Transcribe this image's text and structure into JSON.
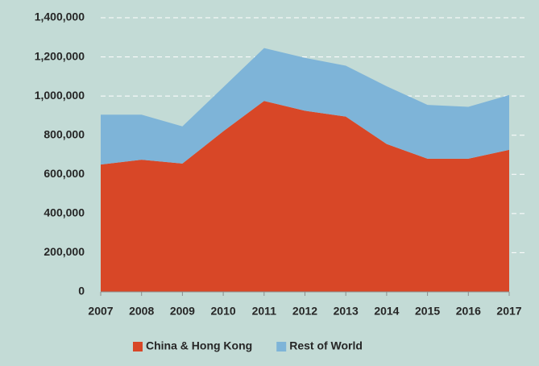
{
  "chart_data": {
    "type": "area",
    "stacked": true,
    "categories": [
      "2007",
      "2008",
      "2009",
      "2010",
      "2011",
      "2012",
      "2013",
      "2014",
      "2015",
      "2016",
      "2017"
    ],
    "series": [
      {
        "name": "China & Hong Kong",
        "color": "#d84727",
        "values": [
          650000,
          675000,
          655000,
          820000,
          975000,
          925000,
          895000,
          755000,
          680000,
          680000,
          725000
        ]
      },
      {
        "name": "Rest of World",
        "color": "#7eb4d8",
        "values": [
          255000,
          230000,
          190000,
          225000,
          270000,
          270000,
          260000,
          295000,
          275000,
          265000,
          280000
        ]
      }
    ],
    "ylim": [
      0,
      1400000
    ],
    "yticks": [
      0,
      {
        "value": 200000,
        "label": "200,000"
      },
      {
        "value": 400000,
        "label": "400,000"
      },
      {
        "value": 600000,
        "label": "600,000"
      },
      {
        "value": 800000,
        "label": "800,000"
      },
      {
        "value": 1000000,
        "label": "1,000,000"
      },
      {
        "value": 1200000,
        "label": "1,200,000"
      },
      {
        "value": 1400000,
        "label": "1,400,000"
      }
    ],
    "grid": true,
    "legend": "bottom"
  }
}
